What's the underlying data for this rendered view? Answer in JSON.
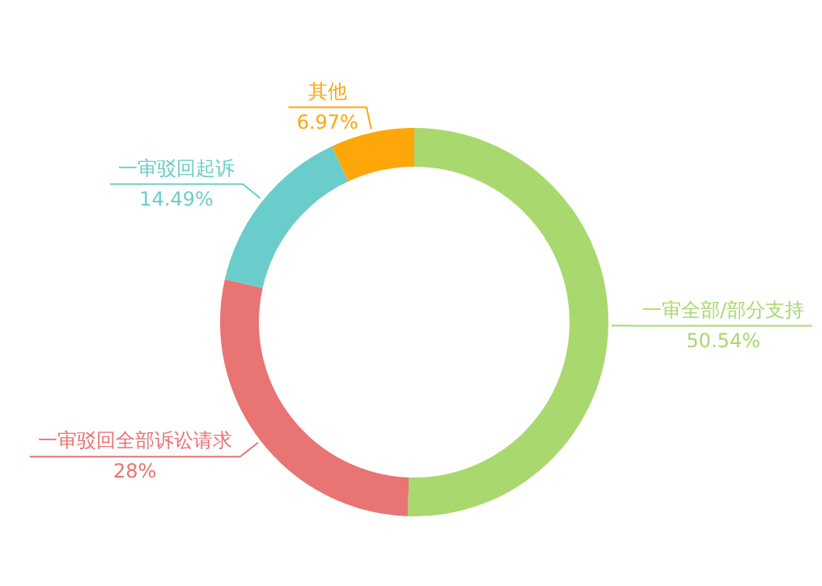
{
  "chart_data": {
    "type": "donut",
    "categories": [
      "一审全部/部分支持",
      "一审驳回全部诉讼请求",
      "一审驳回起诉",
      "其他"
    ],
    "values": [
      50.54,
      28,
      14.49,
      6.97
    ],
    "colors": [
      "#a9d86e",
      "#e87474",
      "#6bcdcb",
      "#ffa60b"
    ],
    "value_labels": [
      "50.54%",
      "28%",
      "14.49%",
      "6.97%"
    ]
  }
}
